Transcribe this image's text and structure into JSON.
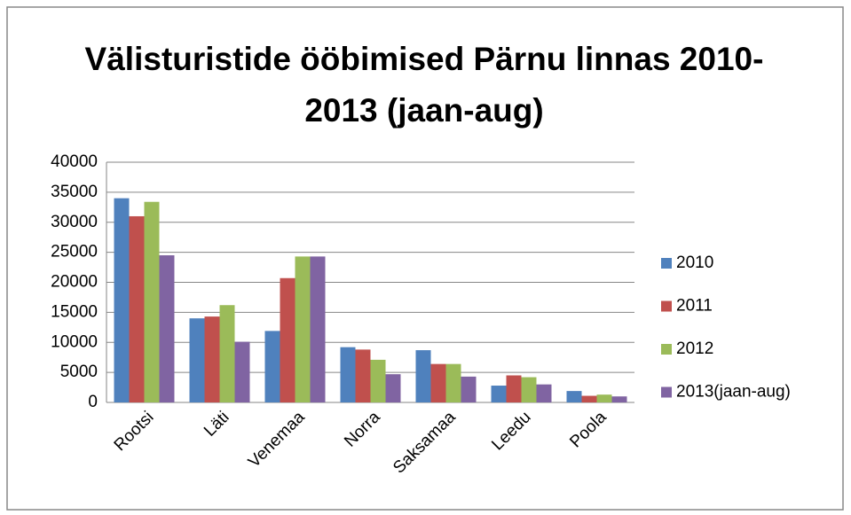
{
  "chart_data": {
    "type": "bar",
    "title": "Välisturistide ööbimised Pärnu linnas 2010-2013 (jaan-aug)",
    "categories": [
      "Rootsi",
      "Läti",
      "Venemaa",
      "Norra",
      "Saksamaa",
      "Leedu",
      "Poola"
    ],
    "series": [
      {
        "name": "2010",
        "color": "#4f81bd",
        "values": [
          34000,
          14000,
          11900,
          9200,
          8700,
          2800,
          1900
        ]
      },
      {
        "name": "2011",
        "color": "#c0504d",
        "values": [
          31000,
          14300,
          20700,
          8800,
          6400,
          4500,
          1100
        ]
      },
      {
        "name": "2012",
        "color": "#9bbb59",
        "values": [
          33400,
          16200,
          24300,
          7100,
          6400,
          4200,
          1300
        ]
      },
      {
        "name": "2013(jaan-aug)",
        "color": "#8064a2",
        "values": [
          24500,
          10100,
          24300,
          4700,
          4300,
          3000,
          1000
        ]
      }
    ],
    "ylim": [
      0,
      40000
    ],
    "yticks": [
      0,
      5000,
      10000,
      15000,
      20000,
      25000,
      30000,
      35000,
      40000
    ],
    "grid": true,
    "legend": "right"
  }
}
